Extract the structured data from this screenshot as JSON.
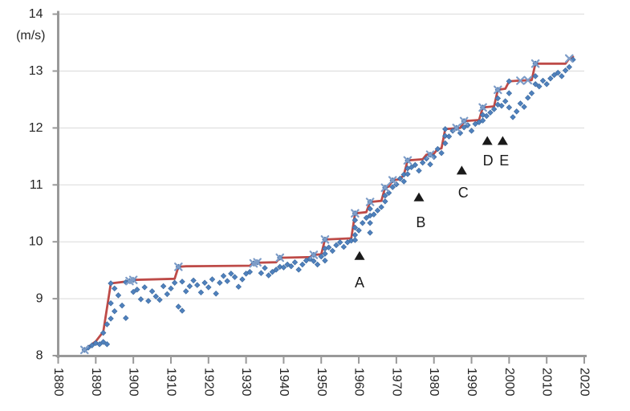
{
  "chart_data": {
    "type": "scatter",
    "title": "",
    "legend": "none",
    "grid": "horizontal",
    "y_axis": {
      "unit_label": "(m/s)",
      "min": 8,
      "max": 14,
      "tick_step": 1,
      "ticks": [
        8,
        9,
        10,
        11,
        12,
        13,
        14
      ]
    },
    "x_axis": {
      "min": 1880,
      "max": 2020,
      "tick_step": 10,
      "ticks": [
        1880,
        1890,
        1900,
        1910,
        1920,
        1930,
        1940,
        1950,
        1960,
        1970,
        1980,
        1990,
        2000,
        2010,
        2020
      ]
    },
    "colors": {
      "annual_points": "#4F81BD",
      "annual_points_stroke": "#3A679C",
      "record_line": "#BE4B48",
      "record_markers": "#7E9DC8",
      "grid": "#D9D9D9",
      "axis": "#999999",
      "text": "#262626",
      "annotation": "#1A1A1A"
    },
    "series": [
      {
        "name": "annual-values",
        "type": "scatter",
        "marker": "diamond",
        "points": [
          [
            1887,
            8.1
          ],
          [
            1888,
            8.14
          ],
          [
            1889,
            8.18
          ],
          [
            1890,
            8.22
          ],
          [
            1891,
            8.2
          ],
          [
            1892,
            8.4
          ],
          [
            1892,
            8.24
          ],
          [
            1893,
            8.2
          ],
          [
            1893,
            8.55
          ],
          [
            1894,
            9.27
          ],
          [
            1894,
            8.92
          ],
          [
            1894,
            8.65
          ],
          [
            1895,
            9.18
          ],
          [
            1895,
            8.78
          ],
          [
            1896,
            9.06
          ],
          [
            1897,
            8.88
          ],
          [
            1898,
            9.29
          ],
          [
            1898,
            8.66
          ],
          [
            1899,
            9.31
          ],
          [
            1900,
            9.33
          ],
          [
            1900,
            9.12
          ],
          [
            1901,
            9.16
          ],
          [
            1902,
            8.99
          ],
          [
            1903,
            9.2
          ],
          [
            1904,
            8.96
          ],
          [
            1905,
            9.13
          ],
          [
            1906,
            9.04
          ],
          [
            1907,
            8.98
          ],
          [
            1908,
            9.22
          ],
          [
            1909,
            9.08
          ],
          [
            1910,
            9.18
          ],
          [
            1911,
            9.28
          ],
          [
            1912,
            9.56
          ],
          [
            1912,
            8.86
          ],
          [
            1913,
            8.79
          ],
          [
            1913,
            9.3
          ],
          [
            1914,
            9.13
          ],
          [
            1915,
            9.22
          ],
          [
            1916,
            9.32
          ],
          [
            1917,
            9.24
          ],
          [
            1918,
            9.11
          ],
          [
            1919,
            9.28
          ],
          [
            1920,
            9.2
          ],
          [
            1921,
            9.34
          ],
          [
            1922,
            9.09
          ],
          [
            1923,
            9.28
          ],
          [
            1924,
            9.4
          ],
          [
            1925,
            9.31
          ],
          [
            1926,
            9.44
          ],
          [
            1927,
            9.38
          ],
          [
            1928,
            9.21
          ],
          [
            1929,
            9.34
          ],
          [
            1930,
            9.44
          ],
          [
            1931,
            9.47
          ],
          [
            1932,
            9.62
          ],
          [
            1933,
            9.64
          ],
          [
            1934,
            9.45
          ],
          [
            1935,
            9.54
          ],
          [
            1936,
            9.41
          ],
          [
            1937,
            9.47
          ],
          [
            1938,
            9.51
          ],
          [
            1939,
            9.72
          ],
          [
            1939,
            9.56
          ],
          [
            1940,
            9.55
          ],
          [
            1941,
            9.6
          ],
          [
            1942,
            9.57
          ],
          [
            1943,
            9.64
          ],
          [
            1944,
            9.51
          ],
          [
            1945,
            9.6
          ],
          [
            1946,
            9.67
          ],
          [
            1947,
            9.7
          ],
          [
            1948,
            9.77
          ],
          [
            1948,
            9.66
          ],
          [
            1949,
            9.6
          ],
          [
            1950,
            9.74
          ],
          [
            1951,
            10.04
          ],
          [
            1951,
            9.88
          ],
          [
            1951,
            9.79
          ],
          [
            1951,
            9.67
          ],
          [
            1952,
            9.9
          ],
          [
            1953,
            9.84
          ],
          [
            1954,
            9.94
          ],
          [
            1955,
            9.99
          ],
          [
            1956,
            9.91
          ],
          [
            1957,
            9.99
          ],
          [
            1958,
            10.02
          ],
          [
            1959,
            10.5
          ],
          [
            1959,
            10.38
          ],
          [
            1959,
            10.25
          ],
          [
            1959,
            10.12
          ],
          [
            1959,
            10.03
          ],
          [
            1960,
            10.2
          ],
          [
            1961,
            10.33
          ],
          [
            1962,
            10.42
          ],
          [
            1963,
            10.7
          ],
          [
            1963,
            10.58
          ],
          [
            1963,
            10.46
          ],
          [
            1963,
            10.33
          ],
          [
            1963,
            10.16
          ],
          [
            1964,
            10.48
          ],
          [
            1965,
            10.55
          ],
          [
            1966,
            10.61
          ],
          [
            1967,
            10.95
          ],
          [
            1967,
            10.81
          ],
          [
            1967,
            10.71
          ],
          [
            1968,
            10.86
          ],
          [
            1969,
            11.08
          ],
          [
            1969,
            10.96
          ],
          [
            1970,
            11.01
          ],
          [
            1971,
            11.11
          ],
          [
            1972,
            11.18
          ],
          [
            1972,
            11.06
          ],
          [
            1973,
            11.43
          ],
          [
            1973,
            11.29
          ],
          [
            1973,
            11.19
          ],
          [
            1974,
            11.31
          ],
          [
            1975,
            11.35
          ],
          [
            1976,
            11.25
          ],
          [
            1977,
            11.39
          ],
          [
            1978,
            11.46
          ],
          [
            1979,
            11.53
          ],
          [
            1979,
            11.36
          ],
          [
            1980,
            11.49
          ],
          [
            1981,
            11.63
          ],
          [
            1982,
            11.56
          ],
          [
            1983,
            11.98
          ],
          [
            1983,
            11.86
          ],
          [
            1983,
            11.73
          ],
          [
            1984,
            11.85
          ],
          [
            1985,
            11.95
          ],
          [
            1986,
            12.0
          ],
          [
            1987,
            11.91
          ],
          [
            1988,
            12.12
          ],
          [
            1988,
            12.01
          ],
          [
            1989,
            12.05
          ],
          [
            1990,
            11.95
          ],
          [
            1991,
            12.07
          ],
          [
            1992,
            12.1
          ],
          [
            1993,
            12.36
          ],
          [
            1993,
            12.23
          ],
          [
            1993,
            12.13
          ],
          [
            1994,
            12.21
          ],
          [
            1995,
            12.27
          ],
          [
            1996,
            12.33
          ],
          [
            1997,
            12.67
          ],
          [
            1997,
            12.52
          ],
          [
            1997,
            12.41
          ],
          [
            1998,
            12.39
          ],
          [
            1999,
            12.47
          ],
          [
            2000,
            12.82
          ],
          [
            2000,
            12.61
          ],
          [
            2000,
            12.36
          ],
          [
            2001,
            12.19
          ],
          [
            2002,
            12.29
          ],
          [
            2003,
            12.43
          ],
          [
            2004,
            12.37
          ],
          [
            2005,
            12.53
          ],
          [
            2006,
            12.61
          ],
          [
            2007,
            13.13
          ],
          [
            2007,
            12.91
          ],
          [
            2007,
            12.77
          ],
          [
            2008,
            12.73
          ],
          [
            2009,
            12.83
          ],
          [
            2010,
            12.77
          ],
          [
            2011,
            12.87
          ],
          [
            2012,
            12.93
          ],
          [
            2013,
            12.97
          ],
          [
            2014,
            12.91
          ],
          [
            2015,
            13.01
          ],
          [
            2016,
            13.07
          ],
          [
            2017,
            13.2
          ]
        ]
      },
      {
        "name": "record-progression",
        "type": "line",
        "stroke_width": 2.8,
        "points": [
          [
            1887,
            8.1
          ],
          [
            1890,
            8.25
          ],
          [
            1892,
            8.42
          ],
          [
            1894,
            9.27
          ],
          [
            1898,
            9.3
          ],
          [
            1900,
            9.33
          ],
          [
            1911,
            9.35
          ],
          [
            1912,
            9.56
          ],
          [
            1914,
            9.57
          ],
          [
            1931,
            9.58
          ],
          [
            1932,
            9.63
          ],
          [
            1938,
            9.64
          ],
          [
            1939,
            9.72
          ],
          [
            1947,
            9.73
          ],
          [
            1948,
            9.77
          ],
          [
            1950,
            9.78
          ],
          [
            1951,
            10.04
          ],
          [
            1958,
            10.06
          ],
          [
            1959,
            10.5
          ],
          [
            1962,
            10.52
          ],
          [
            1963,
            10.7
          ],
          [
            1966,
            10.72
          ],
          [
            1967,
            10.95
          ],
          [
            1968,
            10.97
          ],
          [
            1969,
            11.08
          ],
          [
            1971,
            11.1
          ],
          [
            1972,
            11.18
          ],
          [
            1973,
            11.43
          ],
          [
            1977,
            11.45
          ],
          [
            1978,
            11.53
          ],
          [
            1980,
            11.55
          ],
          [
            1981,
            11.63
          ],
          [
            1982,
            11.64
          ],
          [
            1983,
            11.98
          ],
          [
            1987,
            12.0
          ],
          [
            1988,
            12.12
          ],
          [
            1992,
            12.14
          ],
          [
            1993,
            12.36
          ],
          [
            1996,
            12.38
          ],
          [
            1997,
            12.67
          ],
          [
            1999,
            12.69
          ],
          [
            2000,
            12.82
          ],
          [
            2002,
            12.83
          ],
          [
            2006,
            12.84
          ],
          [
            2007,
            13.13
          ],
          [
            2015,
            13.13
          ],
          [
            2016,
            13.22
          ],
          [
            2017,
            13.25
          ]
        ]
      },
      {
        "name": "record-year-markers",
        "type": "scatter",
        "marker": "x",
        "points": [
          [
            1887,
            8.1
          ],
          [
            1899,
            9.31
          ],
          [
            1900,
            9.33
          ],
          [
            1912,
            9.56
          ],
          [
            1932,
            9.62
          ],
          [
            1933,
            9.64
          ],
          [
            1939,
            9.72
          ],
          [
            1948,
            9.77
          ],
          [
            1951,
            10.04
          ],
          [
            1959,
            10.5
          ],
          [
            1963,
            10.7
          ],
          [
            1967,
            10.95
          ],
          [
            1969,
            11.08
          ],
          [
            1973,
            11.43
          ],
          [
            1979,
            11.53
          ],
          [
            1986,
            12.0
          ],
          [
            1988,
            12.12
          ],
          [
            1993,
            12.36
          ],
          [
            1997,
            12.67
          ],
          [
            2003,
            12.83
          ],
          [
            2005,
            12.84
          ],
          [
            2007,
            13.13
          ],
          [
            2016,
            13.22
          ]
        ]
      }
    ],
    "annotations": {
      "items": [
        {
          "label": "A",
          "triangle": [
            1960.2,
            9.76
          ],
          "label_pos": [
            1960.2,
            9.28
          ]
        },
        {
          "label": "B",
          "triangle": [
            1976.0,
            10.79
          ],
          "label_pos": [
            1976.5,
            10.34
          ]
        },
        {
          "label": "C",
          "triangle": [
            1987.4,
            11.26
          ],
          "label_pos": [
            1987.8,
            10.86
          ]
        },
        {
          "label": "D",
          "triangle": [
            1994.2,
            11.78
          ],
          "label_pos": [
            1994.4,
            11.43
          ]
        },
        {
          "label": "E",
          "triangle": [
            1998.3,
            11.78
          ],
          "label_pos": [
            1998.7,
            11.43
          ]
        }
      ]
    }
  }
}
